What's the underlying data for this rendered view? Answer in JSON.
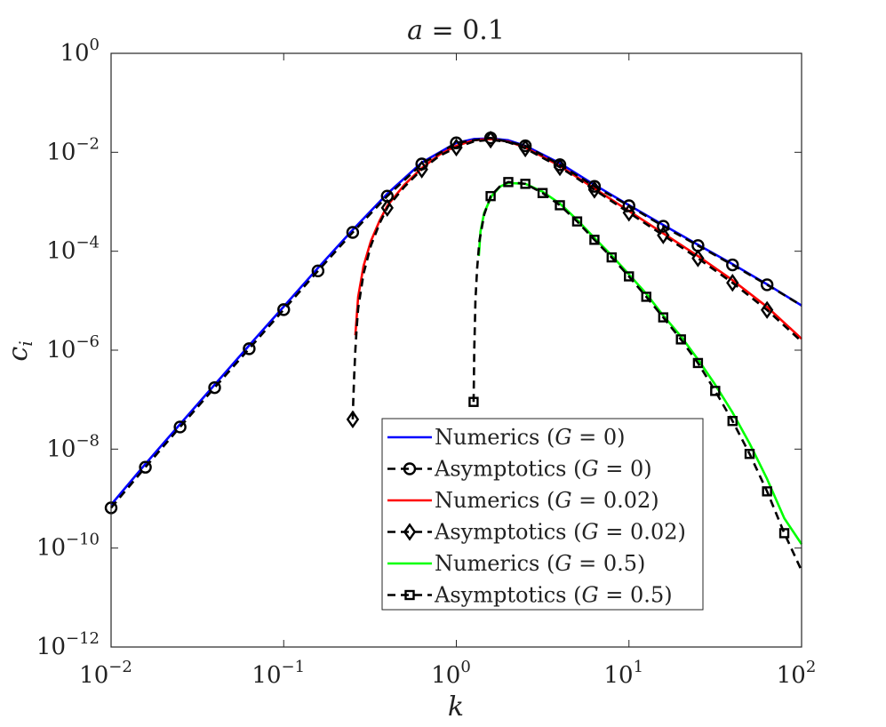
{
  "chart_data": {
    "type": "line",
    "title_var": "a",
    "title_eq": " = 0.1",
    "xlabel": "k",
    "ylabel_main": "c",
    "ylabel_sub": "i",
    "xscale": "log",
    "yscale": "log",
    "xlim": [
      0.01,
      100
    ],
    "ylim": [
      1e-12,
      1
    ],
    "x_ticks": [
      {
        "value": 0.01,
        "base": "10",
        "exp": "−2"
      },
      {
        "value": 0.1,
        "base": "10",
        "exp": "−1"
      },
      {
        "value": 1,
        "base": "10",
        "exp": "0"
      },
      {
        "value": 10,
        "base": "10",
        "exp": "1"
      },
      {
        "value": 100,
        "base": "10",
        "exp": "2"
      }
    ],
    "y_ticks": [
      {
        "value": 1e-12,
        "base": "10",
        "exp": "−12"
      },
      {
        "value": 1e-10,
        "base": "10",
        "exp": "−10"
      },
      {
        "value": 1e-08,
        "base": "10",
        "exp": "−8"
      },
      {
        "value": 1e-06,
        "base": "10",
        "exp": "−6"
      },
      {
        "value": 0.0001,
        "base": "10",
        "exp": "−4"
      },
      {
        "value": 0.01,
        "base": "10",
        "exp": "−2"
      },
      {
        "value": 1,
        "base": "10",
        "exp": "0"
      }
    ],
    "legend_position": "lower-right",
    "legend": [
      {
        "series": 0,
        "pre": "Numerics (",
        "var": "G",
        "post": " = 0)"
      },
      {
        "series": 1,
        "pre": "Asymptotics (",
        "var": "G",
        "post": " = 0)"
      },
      {
        "series": 2,
        "pre": "Numerics (",
        "var": "G",
        "post": " = 0.02)"
      },
      {
        "series": 3,
        "pre": "Asymptotics (",
        "var": "G",
        "post": " = 0.02)"
      },
      {
        "series": 4,
        "pre": "Numerics (",
        "var": "G",
        "post": " = 0.5)"
      },
      {
        "series": 5,
        "pre": "Asymptotics (",
        "var": "G",
        "post": " = 0.5)"
      }
    ],
    "series": [
      {
        "name": "Numerics (G = 0)",
        "kind": "numerics",
        "color": "#0000ff",
        "marker": "none",
        "x": [
          0.01,
          0.0158,
          0.0251,
          0.0398,
          0.0631,
          0.1,
          0.158,
          0.251,
          0.398,
          0.631,
          1.0,
          1.26,
          1.58,
          2.0,
          2.51,
          3.98,
          6.31,
          10,
          15.8,
          25.1,
          39.8,
          63.1,
          100
        ],
        "y": [
          7.5e-10,
          5e-09,
          3.2e-08,
          2e-07,
          1.25e-06,
          7.6e-06,
          4.6e-05,
          0.00027,
          0.00145,
          0.0062,
          0.0155,
          0.0185,
          0.019,
          0.0175,
          0.0135,
          0.006,
          0.0022,
          0.00085,
          0.00034,
          0.000135,
          5.5e-05,
          2.15e-05,
          8e-06
        ]
      },
      {
        "name": "Asymptotics (G = 0)",
        "kind": "asymptotics",
        "color": "#000000",
        "marker": "circle",
        "x": [
          0.01,
          0.0158,
          0.0251,
          0.0398,
          0.0631,
          0.1,
          0.158,
          0.251,
          0.398,
          0.631,
          1.0,
          1.58,
          2.51,
          3.98,
          6.31,
          10,
          15.8,
          25.1,
          39.8,
          63.1,
          100
        ],
        "y": [
          6.5e-10,
          4.3e-09,
          2.8e-08,
          1.75e-07,
          1.07e-06,
          6.6e-06,
          4e-05,
          0.00024,
          0.0013,
          0.0058,
          0.0155,
          0.0195,
          0.0135,
          0.0056,
          0.00205,
          0.00083,
          0.00032,
          0.00013,
          5.3e-05,
          2.1e-05,
          8e-06
        ],
        "marker_x": [
          0.01,
          0.0158,
          0.0251,
          0.0398,
          0.0631,
          0.1,
          0.158,
          0.251,
          0.398,
          0.631,
          1.0,
          1.58,
          2.51,
          3.98,
          6.31,
          10,
          15.8,
          25.1,
          39.8,
          63.1
        ]
      },
      {
        "name": "Numerics (G = 0.02)",
        "kind": "numerics",
        "color": "#ff0000",
        "marker": "none",
        "x": [
          0.26,
          0.27,
          0.29,
          0.32,
          0.36,
          0.4,
          0.5,
          0.631,
          0.8,
          1.0,
          1.26,
          1.58,
          2.0,
          2.51,
          3.98,
          6.31,
          10,
          15.8,
          25.1,
          39.8,
          63.1,
          100
        ],
        "y": [
          2e-06,
          1.2e-05,
          5e-05,
          0.00016,
          0.00042,
          0.00085,
          0.0022,
          0.0048,
          0.009,
          0.0135,
          0.0175,
          0.0185,
          0.0165,
          0.0125,
          0.0053,
          0.00185,
          0.00065,
          0.00023,
          8e-05,
          2.6e-05,
          7.5e-06,
          1.7e-06
        ]
      },
      {
        "name": "Asymptotics (G = 0.02)",
        "kind": "asymptotics",
        "color": "#000000",
        "marker": "diamond",
        "x": [
          0.2512,
          0.253,
          0.256,
          0.26,
          0.265,
          0.27,
          0.29,
          0.32,
          0.36,
          0.4,
          0.5,
          0.631,
          0.8,
          1.0,
          1.26,
          1.58,
          2.0,
          2.51,
          3.98,
          6.31,
          10,
          15.8,
          25.1,
          39.8,
          63.1,
          100
        ],
        "y": [
          4e-08,
          1e-07,
          3e-07,
          1e-06,
          3e-06,
          7e-06,
          3.5e-05,
          0.00013,
          0.00037,
          0.00078,
          0.002,
          0.0045,
          0.0085,
          0.0125,
          0.0165,
          0.018,
          0.016,
          0.012,
          0.005,
          0.00175,
          0.0006,
          0.00021,
          7.2e-05,
          2.3e-05,
          6.5e-06,
          1.5e-06
        ],
        "marker_x": [
          0.2512,
          0.398,
          0.631,
          1.0,
          1.58,
          2.51,
          3.98,
          6.31,
          10,
          15.8,
          25.1,
          39.8,
          63.1
        ]
      },
      {
        "name": "Numerics (G = 0.5)",
        "kind": "numerics",
        "color": "#00ff00",
        "marker": "none",
        "x": [
          1.35,
          1.38,
          1.45,
          1.6,
          1.8,
          2.0,
          2.51,
          3.16,
          3.98,
          5.01,
          6.31,
          7.94,
          10,
          12.6,
          15.8,
          20,
          25.1,
          31.6,
          39.8,
          50,
          63.1,
          79.4,
          100
        ],
        "y": [
          8e-05,
          0.00025,
          0.0006,
          0.0013,
          0.00205,
          0.0024,
          0.0023,
          0.0016,
          0.00092,
          0.00043,
          0.000185,
          8.2e-05,
          3.4e-05,
          1.38e-05,
          5e-06,
          1.9e-06,
          6.5e-07,
          2e-07,
          5.5e-08,
          1.3e-08,
          2.5e-09,
          4e-10,
          1.2e-10
        ]
      },
      {
        "name": "Asymptotics (G = 0.5)",
        "kind": "asymptotics",
        "color": "#000000",
        "marker": "square",
        "x": [
          1.2589,
          1.265,
          1.27,
          1.28,
          1.29,
          1.32,
          1.36,
          1.45,
          1.58,
          1.8,
          2.0,
          2.51,
          3.16,
          3.98,
          5.01,
          6.31,
          7.94,
          10,
          12.6,
          15.8,
          20,
          25.1,
          31.6,
          39.8,
          50,
          63.1,
          79.4,
          100
        ],
        "y": [
          9e-08,
          3e-07,
          1e-06,
          3e-06,
          1e-05,
          4.5e-05,
          0.00016,
          0.00055,
          0.0013,
          0.0021,
          0.0025,
          0.0023,
          0.0015,
          0.00085,
          0.0004,
          0.00017,
          7.5e-05,
          3.1e-05,
          1.2e-05,
          4.6e-06,
          1.65e-06,
          5.5e-07,
          1.5e-07,
          3.7e-08,
          8e-09,
          1.4e-09,
          2e-10,
          3.5e-11
        ],
        "marker_x": [
          1.2589,
          1.58,
          2.0,
          2.51,
          3.16,
          3.98,
          5.01,
          6.31,
          7.94,
          10,
          12.6,
          15.8,
          20,
          25.1,
          31.6,
          39.8,
          50,
          63.1,
          79.4
        ]
      }
    ]
  }
}
